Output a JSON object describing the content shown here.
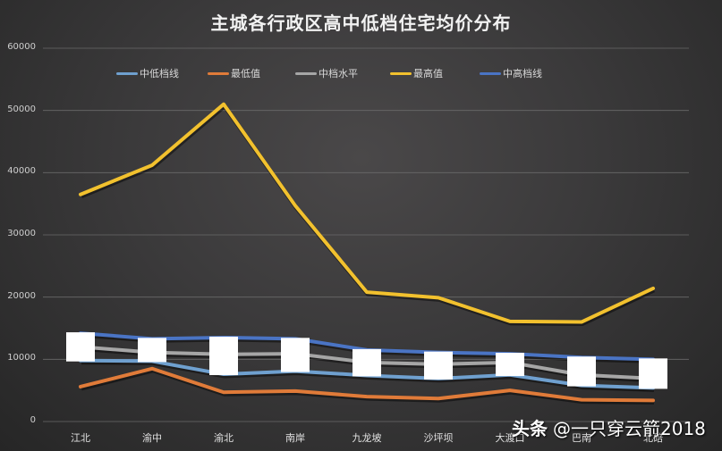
{
  "chart_data": {
    "type": "line",
    "title": "主城各行政区高中低档住宅均价分布",
    "xlabel": "",
    "ylabel": "",
    "ylim": [
      0,
      60000
    ],
    "yticks": [
      "0",
      "10000",
      "20000",
      "30000",
      "40000",
      "50000",
      "60000"
    ],
    "grid": true,
    "legend_position": "top",
    "categories": [
      "江北",
      "渝中",
      "渝北",
      "南岸",
      "九龙坡",
      "沙坪坝",
      "大渡口",
      "巴南",
      "北碚"
    ],
    "series": [
      {
        "name": "中低档线",
        "color": "#6fa0cf",
        "values": [
          9800,
          9700,
          7600,
          8100,
          7400,
          6900,
          7500,
          5800,
          5400
        ]
      },
      {
        "name": "最低值",
        "color": "#e07b39",
        "values": [
          5600,
          8500,
          4700,
          4900,
          4000,
          3700,
          5000,
          3500,
          3400
        ]
      },
      {
        "name": "中档水平",
        "color": "#a6a6a6",
        "values": [
          12000,
          11100,
          10800,
          10900,
          9500,
          9200,
          9500,
          7500,
          6900
        ]
      },
      {
        "name": "最高值",
        "color": "#f2c12e",
        "values": [
          36500,
          41200,
          51000,
          34700,
          20800,
          19900,
          16100,
          16000,
          21400
        ]
      },
      {
        "name": "中高档线",
        "color": "#4a74c4",
        "values": [
          14200,
          13300,
          13500,
          13300,
          11500,
          11100,
          10900,
          10300,
          10000
        ]
      }
    ],
    "annotations": [
      "white rectangle markers cover the middle band at each category"
    ]
  },
  "watermark": {
    "brand": "头条",
    "handle": "@一只穿云箭2018"
  }
}
